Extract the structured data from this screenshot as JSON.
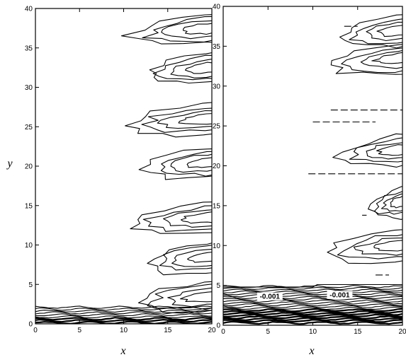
{
  "chart_data": [
    {
      "type": "contour",
      "panel": "left",
      "xlabel": "x",
      "ylabel": "y",
      "xlim": [
        0,
        20
      ],
      "ylim": [
        0,
        40
      ],
      "xticks": [
        0,
        5,
        10,
        15,
        20
      ],
      "yticks": [
        0,
        5,
        10,
        15,
        20,
        25,
        30,
        35,
        40
      ],
      "contour_levels_printed": [],
      "features": [
        {
          "name": "cell-38",
          "y_center": 37.5,
          "x_start": 11.0
        },
        {
          "name": "cell-33",
          "y_center": 32.5,
          "x_start": 12.5
        },
        {
          "name": "cell-26",
          "y_center": 26.0,
          "x_start": 10.5
        },
        {
          "name": "cell-21",
          "y_center": 20.5,
          "x_start": 12.5
        },
        {
          "name": "cell-14",
          "y_center": 13.5,
          "x_start": 11.0
        },
        {
          "name": "cell-8",
          "y_center": 8.5,
          "x_start": 12.5
        },
        {
          "name": "cell-4",
          "y_center": 3.5,
          "x_start": 11.5
        },
        {
          "name": "boundary-layer",
          "y_center": 1.0,
          "x_start": 0.0
        }
      ]
    },
    {
      "type": "contour",
      "panel": "right",
      "xlabel": "x",
      "ylabel": "",
      "xlim": [
        0,
        20
      ],
      "ylim": [
        0,
        40
      ],
      "xticks": [
        0,
        5,
        10,
        15,
        20
      ],
      "yticks": [
        0,
        5,
        10,
        15,
        20,
        25,
        30,
        35,
        40
      ],
      "contour_levels_printed": [
        {
          "text": "-0.001",
          "x": 5.2,
          "y": 3.4
        },
        {
          "text": "-0.001",
          "x": 13.0,
          "y": 3.6
        }
      ],
      "features": [
        {
          "name": "cell-37",
          "y_center": 37.0,
          "x_start": 13.0
        },
        {
          "name": "cell-33",
          "y_center": 33.5,
          "x_start": 12.0
        },
        {
          "name": "cell-22",
          "y_center": 22.0,
          "x_start": 13.0
        },
        {
          "name": "cell-15",
          "y_center": 15.5,
          "x_start": 16.5
        },
        {
          "name": "cell-10",
          "y_center": 10.0,
          "x_start": 11.5
        },
        {
          "name": "boundary-layer",
          "y_center": 2.0,
          "x_start": 0.0
        }
      ]
    }
  ]
}
